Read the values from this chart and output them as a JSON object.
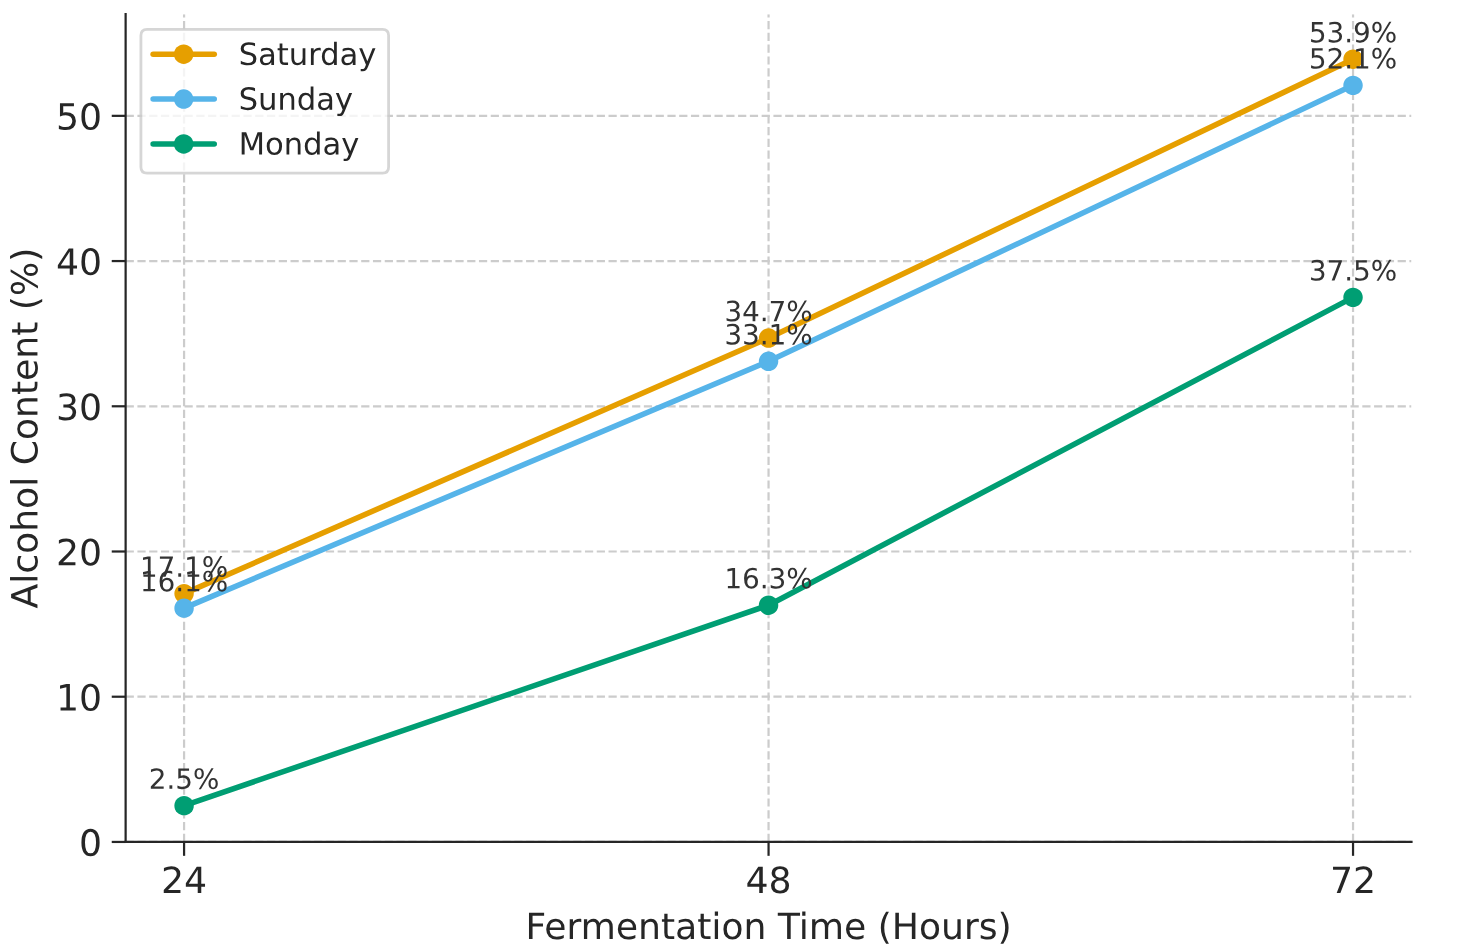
{
  "chart_data": {
    "type": "line",
    "xlabel": "Fermentation Time (Hours)",
    "ylabel": "Alcohol Content (%)",
    "x": [
      24,
      48,
      72
    ],
    "series": [
      {
        "name": "Saturday",
        "color": "#e69f00",
        "values": [
          17.1,
          34.7,
          53.9
        ],
        "value_labels": [
          "17.1%",
          "34.7%",
          "53.9%"
        ]
      },
      {
        "name": "Sunday",
        "color": "#56b4e9",
        "values": [
          16.1,
          33.1,
          52.1
        ],
        "value_labels": [
          "16.1%",
          "33.1%",
          "52.1%"
        ]
      },
      {
        "name": "Monday",
        "color": "#009e73",
        "values": [
          2.5,
          16.3,
          37.5
        ],
        "value_labels": [
          "2.5%",
          "16.3%",
          "37.5%"
        ]
      }
    ],
    "xlim": [
      21.6,
      74.4
    ],
    "xticks": [
      24,
      48,
      72
    ],
    "ylim": [
      0,
      57
    ],
    "yticks": [
      0,
      10,
      20,
      30,
      40,
      50
    ],
    "grid": true,
    "legend": "top left",
    "marker": "circle",
    "line_style": "solid"
  }
}
